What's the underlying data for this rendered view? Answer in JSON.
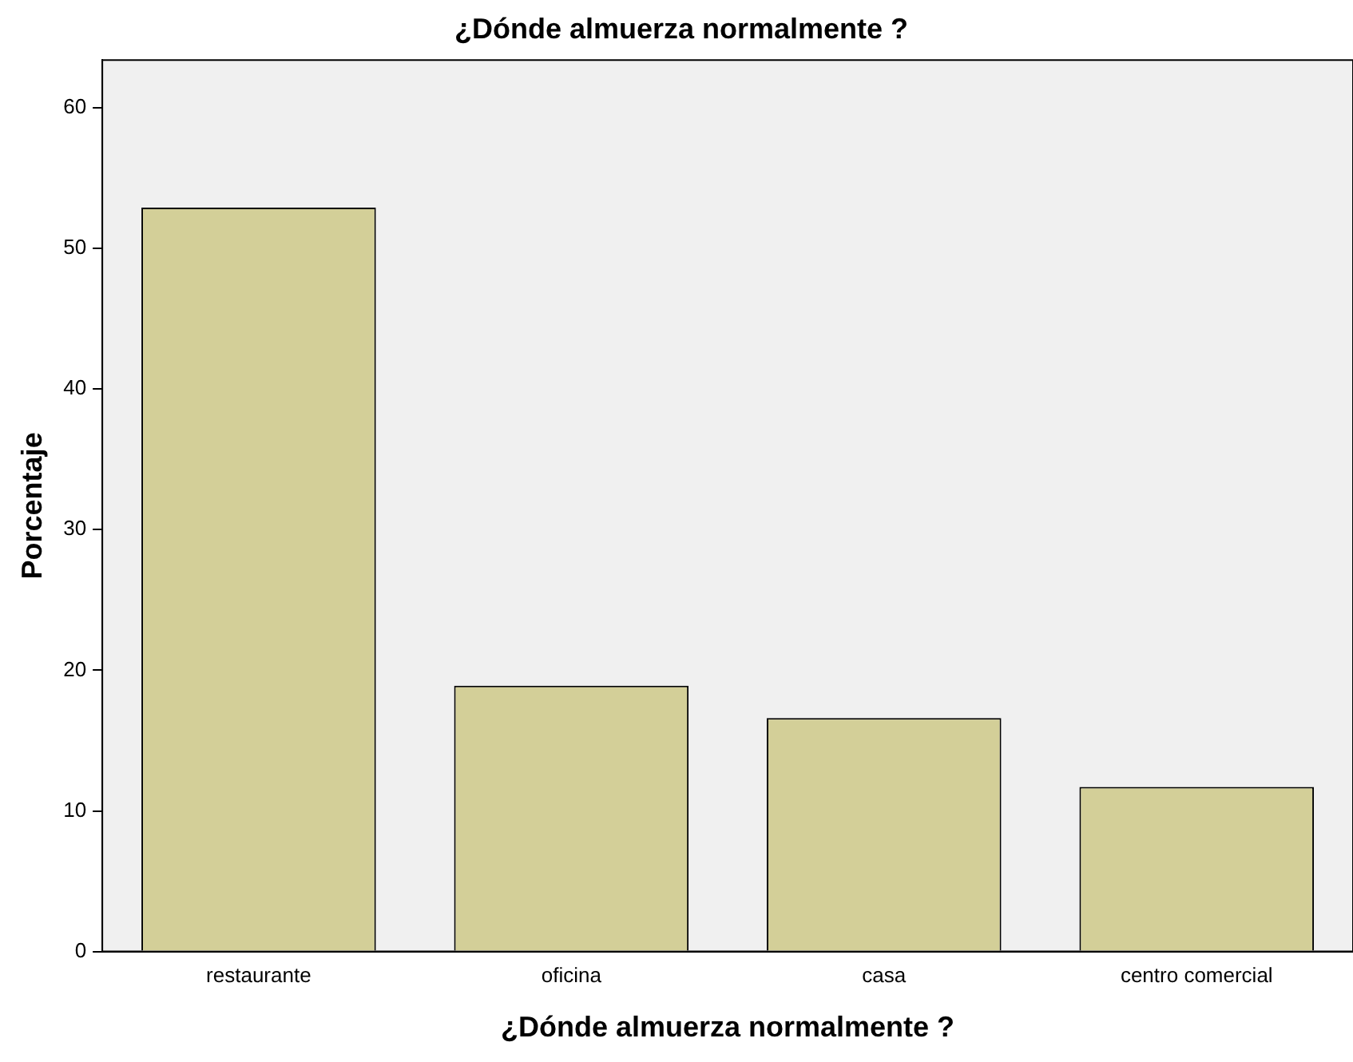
{
  "chart_data": {
    "type": "bar",
    "title": "¿Dónde almuerza normalmente ?",
    "xlabel": "¿Dónde almuerza normalmente ?",
    "ylabel": "Porcentaje",
    "categories": [
      "restaurante",
      "oficina",
      "casa",
      "centro comercial"
    ],
    "values": [
      52.9,
      18.9,
      16.6,
      11.7
    ],
    "color": "#d3cf98",
    "ylim": [
      0,
      63.4
    ],
    "yticks": [
      0,
      10,
      20,
      30,
      40,
      50,
      60
    ],
    "grid": false,
    "legend": false
  }
}
